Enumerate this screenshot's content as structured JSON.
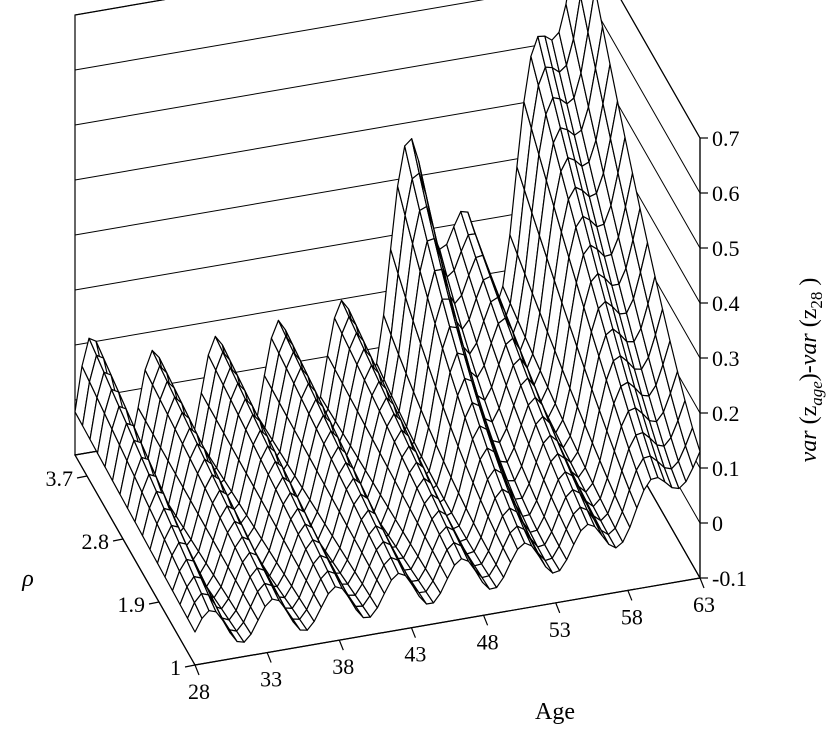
{
  "chart_data": {
    "type": "surface",
    "x_axis": {
      "label": "Age",
      "ticks": [
        "28",
        "33",
        "38",
        "43",
        "48",
        "53",
        "58",
        "63"
      ],
      "range": [
        28,
        63
      ]
    },
    "y_axis": {
      "label": "ρ",
      "ticks": [
        "1",
        "1.9",
        "2.8",
        "3.7"
      ],
      "range": [
        1,
        4
      ]
    },
    "z_axis": {
      "label": {
        "pre": "var",
        "sub1": "age",
        "mid": "-var",
        "sub2": "28",
        "z": "z"
      },
      "ticks": [
        "-0.1",
        "0",
        "0.1",
        "0.2",
        "0.3",
        "0.4",
        "0.5",
        "0.6",
        "0.7"
      ],
      "range": [
        -0.1,
        0.7
      ]
    },
    "grid": true,
    "surface_rows": [
      {
        "rho": 1.0,
        "values_by_age": "28-63",
        "peak_age": 63,
        "peak_value": 0.18
      },
      {
        "rho": 4.0,
        "values_by_age": "28-63",
        "peak_age": 63,
        "peak_value": 0.72
      }
    ]
  }
}
